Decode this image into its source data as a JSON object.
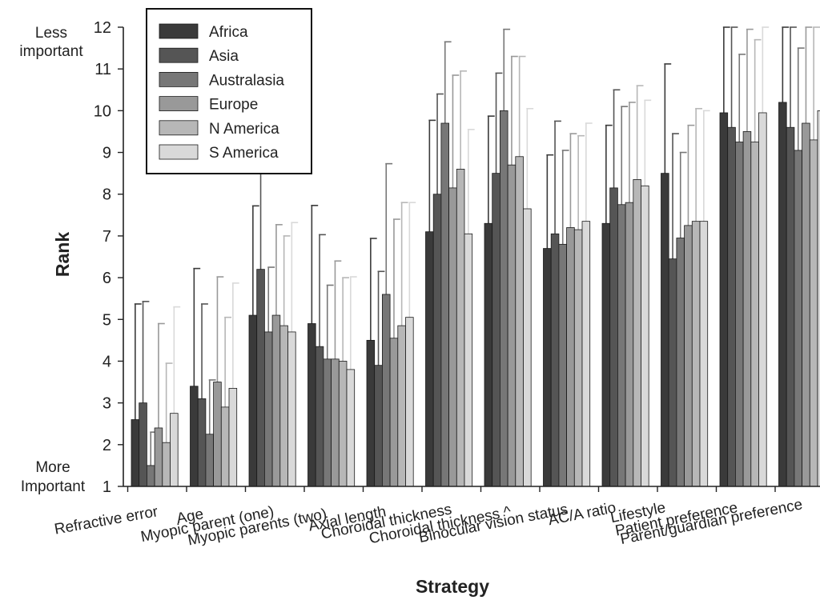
{
  "chart_data": {
    "type": "bar",
    "title": "",
    "xlabel": "Strategy",
    "ylabel": "Rank",
    "ylim": [
      1,
      12
    ],
    "yticks": [
      1,
      2,
      3,
      4,
      5,
      6,
      7,
      8,
      9,
      10,
      11,
      12
    ],
    "y_annotations": {
      "top": [
        "Less",
        "important"
      ],
      "bottom": [
        "More",
        "Important"
      ]
    },
    "legend_position": "top-left",
    "grid": false,
    "error_bars": "upper only",
    "categories": [
      "Refractive error",
      "Age",
      "Myopic parent (one)",
      "Myopic parents (two)",
      "Axial length",
      "Choroidal thickness",
      "Choroidal thickness ^",
      "Binocular vision status",
      "AC/A ratio",
      "Lifestyle",
      "Patient preference",
      "Parent/guardian preference"
    ],
    "series": [
      {
        "name": "Africa",
        "color": "#3a3a3a",
        "values": [
          2.6,
          3.4,
          5.1,
          4.9,
          4.5,
          7.1,
          7.3,
          6.7,
          7.3,
          8.5,
          9.95,
          10.2
        ],
        "errors": [
          2.77,
          2.82,
          2.62,
          2.83,
          2.44,
          2.67,
          2.57,
          2.24,
          2.35,
          2.62,
          2.05,
          1.8
        ]
      },
      {
        "name": "Asia",
        "color": "#555555",
        "values": [
          3.0,
          3.1,
          6.2,
          4.35,
          3.9,
          8.0,
          8.5,
          7.05,
          8.15,
          6.45,
          9.6,
          9.6
        ],
        "errors": [
          2.43,
          2.27,
          2.3,
          2.68,
          2.25,
          2.4,
          2.4,
          2.7,
          2.35,
          3.0,
          2.4,
          2.4
        ]
      },
      {
        "name": "Australasia",
        "color": "#777777",
        "values": [
          1.5,
          2.25,
          4.7,
          4.05,
          5.6,
          9.7,
          10.0,
          6.8,
          7.75,
          6.95,
          9.25,
          9.05
        ],
        "errors": [
          0.8,
          1.3,
          1.55,
          1.77,
          3.13,
          1.95,
          1.95,
          2.25,
          2.35,
          2.05,
          2.1,
          2.45
        ]
      },
      {
        "name": "Europe",
        "color": "#999999",
        "values": [
          2.4,
          3.5,
          5.1,
          4.05,
          4.55,
          8.15,
          8.7,
          7.2,
          7.8,
          7.25,
          9.5,
          9.7
        ],
        "errors": [
          2.5,
          2.52,
          2.17,
          2.35,
          2.85,
          2.7,
          2.6,
          2.25,
          2.4,
          2.4,
          2.45,
          2.4
        ]
      },
      {
        "name": "N America",
        "color": "#b7b7b7",
        "values": [
          2.05,
          2.9,
          4.85,
          4.0,
          4.85,
          8.6,
          8.9,
          7.15,
          8.35,
          7.35,
          9.25,
          9.3
        ],
        "errors": [
          1.9,
          2.15,
          2.15,
          2.0,
          2.95,
          2.35,
          2.4,
          2.25,
          2.25,
          2.7,
          2.45,
          2.7
        ]
      },
      {
        "name": "S America",
        "color": "#d9d9d9",
        "values": [
          2.75,
          3.35,
          4.7,
          3.8,
          5.05,
          7.05,
          7.65,
          7.35,
          8.2,
          7.35,
          9.95,
          10.0
        ],
        "errors": [
          2.55,
          2.52,
          2.62,
          2.22,
          2.75,
          2.5,
          2.4,
          2.35,
          2.05,
          2.65,
          2.05,
          2.0
        ]
      }
    ]
  }
}
